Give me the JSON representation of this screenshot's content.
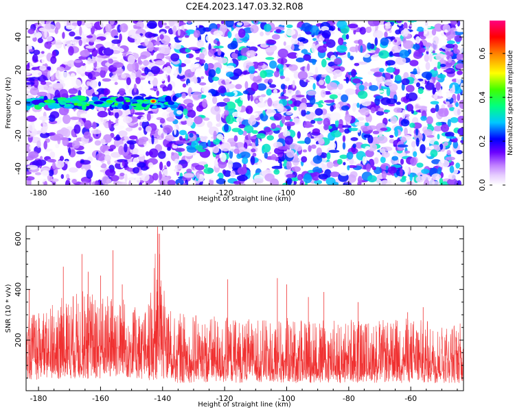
{
  "title": "C2E4.2023.147.03.32.R08",
  "colors": {
    "signal": "#f03030",
    "colormap": [
      "#ffffff",
      "#e6ccff",
      "#c080ff",
      "#8a2be2",
      "#6a00ff",
      "#0000ff",
      "#00ffff",
      "#00ff00",
      "#ffff00",
      "#ff8000",
      "#ff0000",
      "#ff0080"
    ]
  },
  "chart_data": [
    {
      "type": "heatmap",
      "title": "C2E4.2023.147.03.32.R08",
      "xlabel": "Height of straight line (km)",
      "ylabel": "Frequency (Hz)",
      "xlim": [
        -184,
        -43
      ],
      "ylim": [
        -50,
        50
      ],
      "xticks": [
        -180,
        -160,
        -140,
        -120,
        -100,
        -80,
        -60
      ],
      "yticks": [
        -40,
        -20,
        0,
        20,
        40
      ],
      "colorbar": {
        "label": "Normalized spectral amplitude",
        "range": [
          0,
          0.75
        ],
        "ticks": [
          0.0,
          0.2,
          0.4,
          0.6
        ]
      },
      "features": [
        {
          "name": "",
          "x_range": [
            -184,
            -136
          ],
          "frequency": 0,
          "amplitude_max": 0.7,
          "peak_x": -143
        }
      ]
    },
    {
      "type": "line",
      "title": "",
      "xlabel": "Height of straight line (km)",
      "ylabel": "SNR (10 * v/v)",
      "xlim": [
        -184,
        -43
      ],
      "ylim": [
        0,
        650
      ],
      "xticks": [
        -180,
        -160,
        -140,
        -120,
        -100,
        -80,
        -60
      ],
      "yticks": [
        200,
        400,
        600
      ],
      "envelope": {
        "x": [
          -184,
          -178,
          -172,
          -166,
          -160,
          -155,
          -150,
          -146,
          -143,
          -142,
          -141,
          -140,
          -138,
          -130,
          -120,
          -110,
          -100,
          -90,
          -80,
          -70,
          -60,
          -50,
          -43
        ],
        "upper": [
          290,
          330,
          370,
          400,
          380,
          390,
          340,
          310,
          420,
          640,
          620,
          420,
          320,
          300,
          290,
          280,
          290,
          280,
          290,
          280,
          290,
          270,
          270
        ],
        "mean": [
          140,
          150,
          150,
          150,
          150,
          165,
          145,
          140,
          150,
          250,
          240,
          160,
          130,
          120,
          115,
          115,
          115,
          110,
          110,
          110,
          110,
          110,
          110
        ],
        "lower": [
          40,
          45,
          45,
          45,
          45,
          50,
          45,
          40,
          40,
          40,
          40,
          40,
          30,
          30,
          30,
          30,
          30,
          30,
          30,
          30,
          30,
          30,
          30
        ]
      },
      "peaks": [
        {
          "x": -183,
          "y": 400
        },
        {
          "x": -172,
          "y": 490
        },
        {
          "x": -166,
          "y": 540
        },
        {
          "x": -164,
          "y": 470
        },
        {
          "x": -160,
          "y": 455
        },
        {
          "x": -156,
          "y": 555
        },
        {
          "x": -153,
          "y": 420
        },
        {
          "x": -141.6,
          "y": 648
        },
        {
          "x": -141,
          "y": 620
        },
        {
          "x": -119,
          "y": 440
        },
        {
          "x": -103,
          "y": 445
        },
        {
          "x": -100,
          "y": 420
        },
        {
          "x": -93,
          "y": 370
        },
        {
          "x": -88,
          "y": 390
        },
        {
          "x": -77,
          "y": 350
        },
        {
          "x": -61,
          "y": 310
        },
        {
          "x": -56,
          "y": 330
        }
      ]
    }
  ]
}
